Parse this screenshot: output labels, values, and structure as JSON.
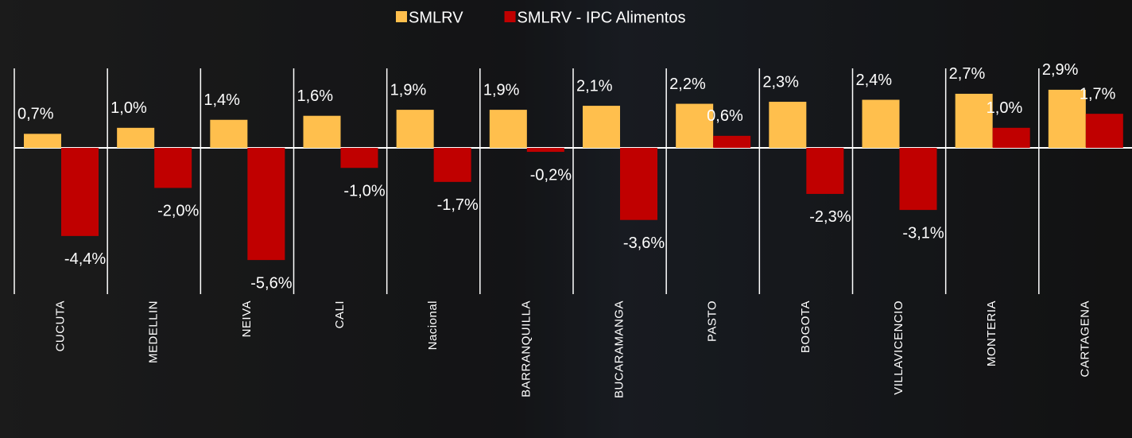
{
  "chart_data": {
    "type": "bar",
    "categories": [
      "CUCUTA",
      "MEDELLIN",
      "NEIVA",
      "CALI",
      "Nacional",
      "BARRANQUILLA",
      "BUCARAMANGA",
      "PASTO",
      "BOGOTA",
      "VILLAVICENCIO",
      "MONTERIA",
      "CARTAGENA"
    ],
    "series": [
      {
        "name": "SMLRV",
        "color": "#ffbf4d",
        "values": [
          0.7,
          1.0,
          1.4,
          1.6,
          1.9,
          1.9,
          2.1,
          2.2,
          2.3,
          2.4,
          2.7,
          2.9
        ],
        "value_labels": [
          "0,7%",
          "1,0%",
          "1,4%",
          "1,6%",
          "1,9%",
          "1,9%",
          "2,1%",
          "2,2%",
          "2,3%",
          "2,4%",
          "2,7%",
          "2,9%"
        ]
      },
      {
        "name": "SMLRV - IPC Alimentos",
        "color": "#c00000",
        "values": [
          -4.4,
          -2.0,
          -5.6,
          -1.0,
          -1.7,
          -0.2,
          -3.6,
          0.6,
          -2.3,
          -3.1,
          1.0,
          1.7
        ],
        "value_labels": [
          "-4,4%",
          "-2,0%",
          "-5,6%",
          "-1,0%",
          "-1,7%",
          "-0,2%",
          "-3,6%",
          "0,6%",
          "-2,3%",
          "-3,1%",
          "1,0%",
          "1,7%"
        ]
      }
    ],
    "legend": "top"
  }
}
